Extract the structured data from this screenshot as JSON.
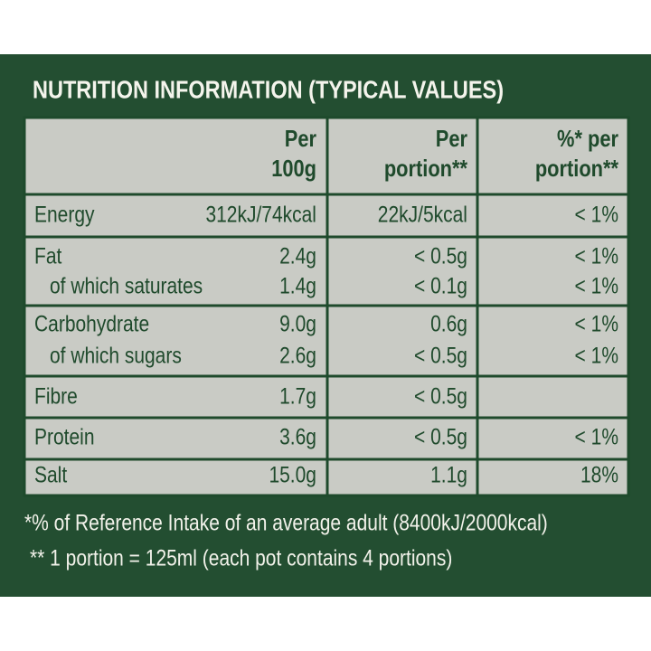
{
  "title": "NUTRITION INFORMATION (TYPICAL VALUES)",
  "table": {
    "header": [
      [
        "Per",
        "100g"
      ],
      [
        "Per",
        "portion**"
      ],
      [
        "%* per",
        "portion**"
      ]
    ],
    "groups": [
      {
        "rows": [
          [
            "Energy",
            "312kJ/74kcal",
            "22kJ/5kcal",
            "< 1%"
          ]
        ]
      },
      {
        "rows": [
          [
            "Fat",
            "2.4g",
            "< 0.5g",
            "< 1%"
          ],
          [
            "of which saturates",
            "1.4g",
            "< 0.1g",
            "< 1%"
          ]
        ]
      },
      {
        "rows": [
          [
            "Carbohydrate",
            "9.0g",
            "0.6g",
            "< 1%"
          ],
          [
            "of which sugars",
            "2.6g",
            "< 0.5g",
            "< 1%"
          ]
        ]
      },
      {
        "rows": [
          [
            "Fibre",
            "1.7g",
            "< 0.5g",
            null
          ]
        ]
      },
      {
        "rows": [
          [
            "Protein",
            "3.6g",
            "< 0.5g",
            "< 1%"
          ]
        ]
      },
      {
        "rows": [
          [
            "Salt",
            "15.0g",
            "1.1g",
            "18%"
          ]
        ]
      }
    ]
  },
  "footnotes": [
    "*% of Reference Intake of an average adult (8400kJ/2000kcal)",
    "** 1 portion = 125ml (each pot contains 4 portions)"
  ]
}
